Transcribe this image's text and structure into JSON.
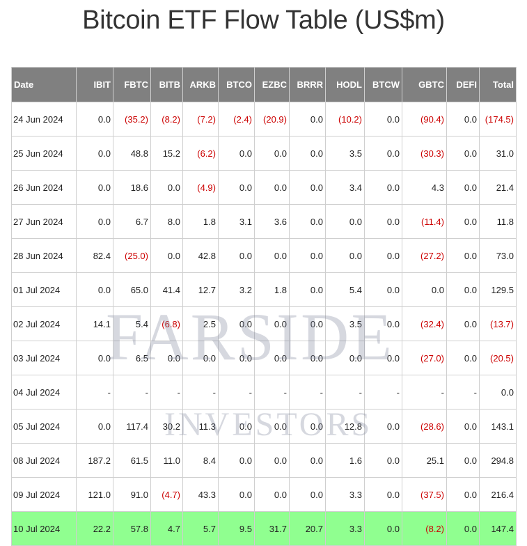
{
  "title": "Bitcoin ETF Flow Table (US$m)",
  "watermark": {
    "line1": "FARSIDE",
    "line2": "INVESTORS"
  },
  "colors": {
    "header_bg": "#808080",
    "negative": "#cc0000",
    "highlight_row": "#90ff90"
  },
  "table": {
    "columns": [
      "Date",
      "IBIT",
      "FBTC",
      "BITB",
      "ARKB",
      "BTCO",
      "EZBC",
      "BRRR",
      "HODL",
      "BTCW",
      "GBTC",
      "DEFI",
      "Total"
    ],
    "rows": [
      {
        "cells": [
          "24 Jun 2024",
          "0.0",
          "(35.2)",
          "(8.2)",
          "(7.2)",
          "(2.4)",
          "(20.9)",
          "0.0",
          "(10.2)",
          "0.0",
          "(90.4)",
          "0.0",
          "(174.5)"
        ]
      },
      {
        "cells": [
          "25 Jun 2024",
          "0.0",
          "48.8",
          "15.2",
          "(6.2)",
          "0.0",
          "0.0",
          "0.0",
          "3.5",
          "0.0",
          "(30.3)",
          "0.0",
          "31.0"
        ]
      },
      {
        "cells": [
          "26 Jun 2024",
          "0.0",
          "18.6",
          "0.0",
          "(4.9)",
          "0.0",
          "0.0",
          "0.0",
          "3.4",
          "0.0",
          "4.3",
          "0.0",
          "21.4"
        ]
      },
      {
        "cells": [
          "27 Jun 2024",
          "0.0",
          "6.7",
          "8.0",
          "1.8",
          "3.1",
          "3.6",
          "0.0",
          "0.0",
          "0.0",
          "(11.4)",
          "0.0",
          "11.8"
        ]
      },
      {
        "cells": [
          "28 Jun 2024",
          "82.4",
          "(25.0)",
          "0.0",
          "42.8",
          "0.0",
          "0.0",
          "0.0",
          "0.0",
          "0.0",
          "(27.2)",
          "0.0",
          "73.0"
        ]
      },
      {
        "cells": [
          "01 Jul 2024",
          "0.0",
          "65.0",
          "41.4",
          "12.7",
          "3.2",
          "1.8",
          "0.0",
          "5.4",
          "0.0",
          "0.0",
          "0.0",
          "129.5"
        ]
      },
      {
        "cells": [
          "02 Jul 2024",
          "14.1",
          "5.4",
          "(6.8)",
          "2.5",
          "0.0",
          "0.0",
          "0.0",
          "3.5",
          "0.0",
          "(32.4)",
          "0.0",
          "(13.7)"
        ]
      },
      {
        "cells": [
          "03 Jul 2024",
          "0.0",
          "6.5",
          "0.0",
          "0.0",
          "0.0",
          "0.0",
          "0.0",
          "0.0",
          "0.0",
          "(27.0)",
          "0.0",
          "(20.5)"
        ]
      },
      {
        "cells": [
          "04 Jul 2024",
          "-",
          "-",
          "-",
          "-",
          "-",
          "-",
          "-",
          "-",
          "-",
          "-",
          "-",
          "0.0"
        ]
      },
      {
        "cells": [
          "05 Jul 2024",
          "0.0",
          "117.4",
          "30.2",
          "11.3",
          "0.0",
          "0.0",
          "0.0",
          "12.8",
          "0.0",
          "(28.6)",
          "0.0",
          "143.1"
        ]
      },
      {
        "cells": [
          "08 Jul 2024",
          "187.2",
          "61.5",
          "11.0",
          "8.4",
          "0.0",
          "0.0",
          "0.0",
          "1.6",
          "0.0",
          "25.1",
          "0.0",
          "294.8"
        ]
      },
      {
        "cells": [
          "09 Jul 2024",
          "121.0",
          "91.0",
          "(4.7)",
          "43.3",
          "0.0",
          "0.0",
          "0.0",
          "3.3",
          "0.0",
          "(37.5)",
          "0.0",
          "216.4"
        ]
      },
      {
        "cells": [
          "10 Jul 2024",
          "22.2",
          "57.8",
          "4.7",
          "5.7",
          "9.5",
          "31.7",
          "20.7",
          "3.3",
          "0.0",
          "(8.2)",
          "0.0",
          "147.4"
        ],
        "highlight": true
      }
    ]
  }
}
